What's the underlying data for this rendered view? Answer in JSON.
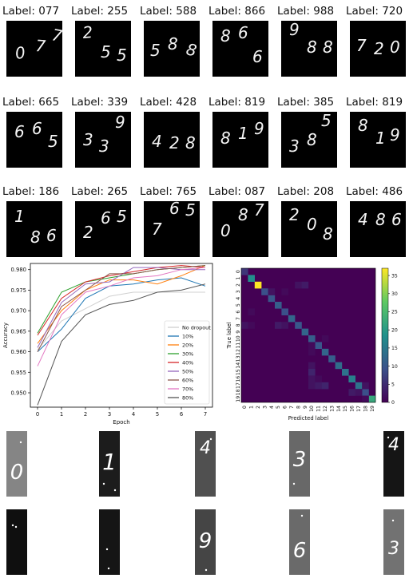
{
  "grid_tiles": [
    {
      "label": "Label: 077",
      "digits": [
        "0",
        "7",
        "7"
      ]
    },
    {
      "label": "Label: 255",
      "digits": [
        "2",
        "5",
        "5"
      ]
    },
    {
      "label": "Label: 588",
      "digits": [
        "5",
        "8",
        "8"
      ]
    },
    {
      "label": "Label: 866",
      "digits": [
        "8",
        "6",
        "6"
      ]
    },
    {
      "label": "Label: 988",
      "digits": [
        "9",
        "8",
        "8"
      ]
    },
    {
      "label": "Label: 720",
      "digits": [
        "7",
        "2",
        "0"
      ]
    },
    {
      "label": "Label: 665",
      "digits": [
        "6",
        "6",
        "5"
      ]
    },
    {
      "label": "Label: 339",
      "digits": [
        "3",
        "3",
        "9"
      ]
    },
    {
      "label": "Label: 428",
      "digits": [
        "4",
        "2",
        "8"
      ]
    },
    {
      "label": "Label: 819",
      "digits": [
        "8",
        "1",
        "9"
      ]
    },
    {
      "label": "Label: 385",
      "digits": [
        "3",
        "8",
        "5"
      ]
    },
    {
      "label": "Label: 819",
      "digits": [
        "8",
        "1",
        "9"
      ]
    },
    {
      "label": "Label: 186",
      "digits": [
        "1",
        "8",
        "6"
      ]
    },
    {
      "label": "Label: 265",
      "digits": [
        "2",
        "6",
        "5"
      ]
    },
    {
      "label": "Label: 765",
      "digits": [
        "7",
        "6",
        "5"
      ]
    },
    {
      "label": "Label: 087",
      "digits": [
        "0",
        "8",
        "7"
      ]
    },
    {
      "label": "Label: 208",
      "digits": [
        "2",
        "0",
        "8"
      ]
    },
    {
      "label": "Label: 486",
      "digits": [
        "4",
        "8",
        "6"
      ]
    }
  ],
  "chart_data": [
    {
      "type": "line",
      "xlabel": "Epoch",
      "ylabel": "Accuracy",
      "x": [
        0,
        1,
        2,
        3,
        4,
        5,
        6,
        7
      ],
      "xticks": [
        "0",
        "1",
        "2",
        "3",
        "4",
        "5",
        "6",
        "7"
      ],
      "yticks": [
        "0.950",
        "0.955",
        "0.960",
        "0.965",
        "0.970",
        "0.975",
        "0.980"
      ],
      "ylim": [
        0.9465,
        0.9815
      ],
      "legend_position": "lower-right",
      "series": [
        {
          "name": "No dropout",
          "color": "#d0d0d0",
          "values": [
            0.9605,
            0.9675,
            0.9705,
            0.9735,
            0.9745,
            0.9745,
            0.9745,
            0.9745
          ]
        },
        {
          "name": "10%",
          "color": "#1f77b4",
          "values": [
            0.96,
            0.9655,
            0.973,
            0.976,
            0.9765,
            0.9775,
            0.978,
            0.976
          ]
        },
        {
          "name": "20%",
          "color": "#ff7f0e",
          "values": [
            0.962,
            0.97,
            0.975,
            0.9775,
            0.9775,
            0.9765,
            0.9785,
            0.981
          ]
        },
        {
          "name": "30%",
          "color": "#2ca02c",
          "values": [
            0.9645,
            0.9745,
            0.977,
            0.978,
            0.979,
            0.98,
            0.9805,
            0.981
          ]
        },
        {
          "name": "40%",
          "color": "#d62728",
          "values": [
            0.964,
            0.973,
            0.977,
            0.9785,
            0.9795,
            0.9805,
            0.981,
            0.9805
          ]
        },
        {
          "name": "50%",
          "color": "#9467bd",
          "values": [
            0.961,
            0.972,
            0.9765,
            0.977,
            0.9805,
            0.9805,
            0.98,
            0.98
          ]
        },
        {
          "name": "60%",
          "color": "#8c564b",
          "values": [
            0.96,
            0.971,
            0.975,
            0.979,
            0.979,
            0.98,
            0.9805,
            0.981
          ]
        },
        {
          "name": "70%",
          "color": "#e377c2",
          "values": [
            0.9565,
            0.969,
            0.9745,
            0.976,
            0.978,
            0.9785,
            0.98,
            0.9805
          ]
        },
        {
          "name": "80%",
          "color": "#555555",
          "values": [
            0.947,
            0.9625,
            0.969,
            0.9715,
            0.9725,
            0.9745,
            0.975,
            0.9765
          ]
        }
      ]
    },
    {
      "type": "heatmap",
      "xlabel": "Predicted label",
      "ylabel": "True label",
      "labels": [
        "0",
        "1",
        "2",
        "3",
        "4",
        "5",
        "6",
        "7",
        "8",
        "9",
        "10",
        "11",
        "12",
        "13",
        "14",
        "15",
        "16",
        "17",
        "18",
        "19"
      ],
      "colorbar_ticks": [
        "0",
        "5",
        "10",
        "15",
        "20",
        "25",
        "30",
        "35"
      ],
      "vmax": 37,
      "diagonal": [
        6,
        18,
        37,
        9,
        10,
        11,
        9,
        12,
        10,
        12,
        11,
        10,
        12,
        11,
        13,
        14,
        16,
        14,
        9,
        22
      ],
      "off_diagonal": [
        {
          "row": 3,
          "col": 4,
          "value": 2
        },
        {
          "row": 3,
          "col": 6,
          "value": 1
        },
        {
          "row": 2,
          "col": 8,
          "value": 2
        },
        {
          "row": 2,
          "col": 9,
          "value": 3
        },
        {
          "row": 6,
          "col": 1,
          "value": 1
        },
        {
          "row": 8,
          "col": 0,
          "value": 2
        },
        {
          "row": 8,
          "col": 1,
          "value": 1
        },
        {
          "row": 8,
          "col": 5,
          "value": 3
        },
        {
          "row": 8,
          "col": 6,
          "value": 2
        },
        {
          "row": 10,
          "col": 12,
          "value": 1
        },
        {
          "row": 11,
          "col": 10,
          "value": 1
        },
        {
          "row": 12,
          "col": 10,
          "value": 1
        },
        {
          "row": 14,
          "col": 10,
          "value": 2
        },
        {
          "row": 15,
          "col": 10,
          "value": 4
        },
        {
          "row": 16,
          "col": 10,
          "value": 2
        },
        {
          "row": 16,
          "col": 11,
          "value": 1
        },
        {
          "row": 17,
          "col": 10,
          "value": 2
        },
        {
          "row": 17,
          "col": 11,
          "value": 3
        },
        {
          "row": 17,
          "col": 12,
          "value": 4
        },
        {
          "row": 17,
          "col": 18,
          "value": 2
        },
        {
          "row": 18,
          "col": 16,
          "value": 3
        },
        {
          "row": 18,
          "col": 17,
          "value": 2
        },
        {
          "row": 19,
          "col": 18,
          "value": 1
        }
      ]
    }
  ],
  "strip_images": [
    {
      "glyph": "0",
      "bg": "#858585"
    },
    {
      "glyph": "1",
      "bg": "#1c1c1c"
    },
    {
      "glyph": "4",
      "bg": "#505050"
    },
    {
      "glyph": "3",
      "bg": "#686868"
    },
    {
      "glyph": "4",
      "bg": "#151515"
    },
    {
      "glyph": "",
      "bg": "#0f0f0f"
    },
    {
      "glyph": "",
      "bg": "#151515"
    },
    {
      "glyph": "9",
      "bg": "#454545"
    },
    {
      "glyph": "6",
      "bg": "#6a6a6a"
    },
    {
      "glyph": "3",
      "bg": "#727272"
    }
  ]
}
